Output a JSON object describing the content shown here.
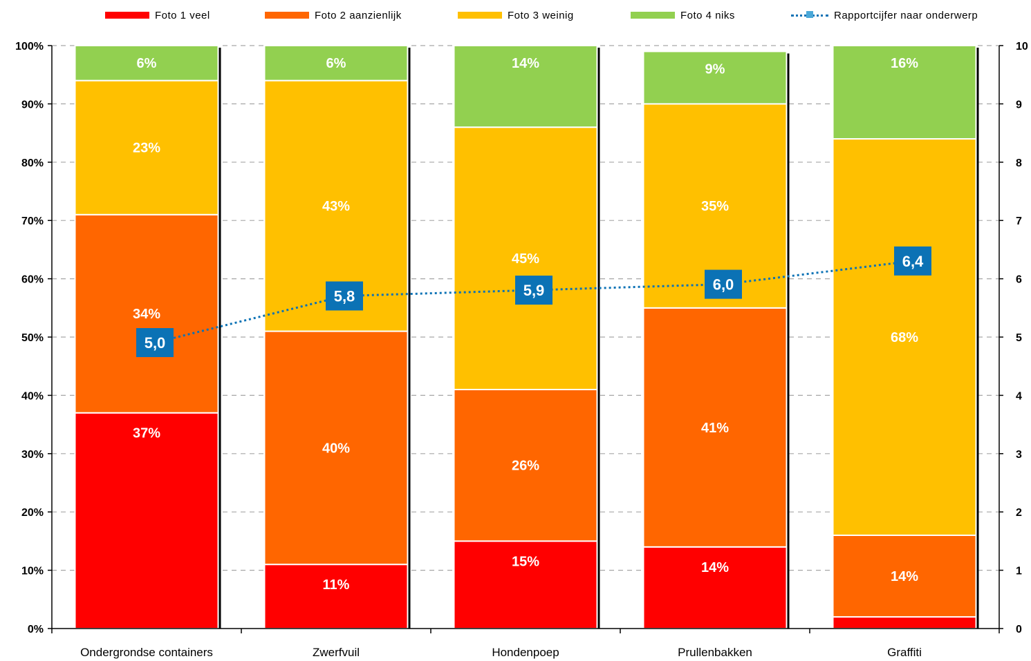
{
  "legend": [
    {
      "label": "Foto 1 veel",
      "color": "#ff0000",
      "kind": "bar"
    },
    {
      "label": "Foto 2 aanzienlijk",
      "color": "#ff6600",
      "kind": "bar"
    },
    {
      "label": "Foto 3 weinig",
      "color": "#ffc000",
      "kind": "bar"
    },
    {
      "label": "Foto 4 niks",
      "color": "#92d050",
      "kind": "bar"
    },
    {
      "label": "Rapportcijfer naar onderwerp",
      "color": "#0b72b5",
      "kind": "line"
    }
  ],
  "chart_data": {
    "type": "bar",
    "stacked": true,
    "categories": [
      "Ondergrondse containers",
      "Zwerfvuil",
      "Hondenpoep",
      "Prullenbakken",
      "Graffiti"
    ],
    "series": [
      {
        "name": "Foto 1 veel",
        "color": "#ff0000",
        "values": [
          37,
          11,
          15,
          14,
          2
        ],
        "labels": [
          "37%",
          "11%",
          "15%",
          "14%",
          ""
        ]
      },
      {
        "name": "Foto 2 aanzienlijk",
        "color": "#ff6600",
        "values": [
          34,
          40,
          26,
          41,
          14
        ],
        "labels": [
          "34%",
          "40%",
          "26%",
          "41%",
          "14%"
        ]
      },
      {
        "name": "Foto 3 weinig",
        "color": "#ffc000",
        "values": [
          23,
          43,
          45,
          35,
          68
        ],
        "labels": [
          "23%",
          "43%",
          "45%",
          "35%",
          "68%"
        ]
      },
      {
        "name": "Foto 4 niks",
        "color": "#92d050",
        "values": [
          6,
          6,
          14,
          9,
          16
        ],
        "labels": [
          "6%",
          "6%",
          "14%",
          "9%",
          "16%"
        ]
      }
    ],
    "line": {
      "name": "Rapportcijfer naar onderwerp",
      "color": "#0b72b5",
      "axis": "right",
      "values": [
        5.0,
        5.8,
        5.9,
        6.0,
        6.4
      ],
      "labels": [
        "5,0",
        "5,8",
        "5,9",
        "6,0",
        "6,4"
      ]
    },
    "y_left": {
      "range": [
        0,
        100
      ],
      "ticks": [
        "0%",
        "10%",
        "20%",
        "30%",
        "40%",
        "50%",
        "60%",
        "70%",
        "80%",
        "90%",
        "100%"
      ]
    },
    "y_right": {
      "range": [
        0,
        10
      ],
      "ticks": [
        "0",
        "1",
        "2",
        "3",
        "4",
        "5",
        "6",
        "7",
        "8",
        "9",
        "10"
      ]
    },
    "grid": true,
    "legend_position": "top"
  }
}
